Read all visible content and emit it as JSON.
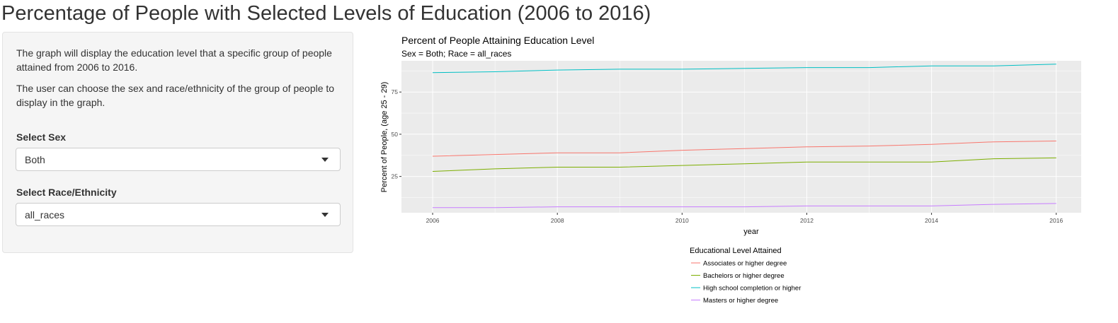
{
  "page": {
    "title": "Percentage of People with Selected Levels of Education (2006 to 2016)"
  },
  "sidebar": {
    "description_1": "The graph will display the education level that a specific group of people attained from 2006 to 2016.",
    "description_2": "The user can choose the sex and race/ethnicity of the group of people to display in the graph.",
    "sex_label": "Select Sex",
    "sex_value": "Both",
    "race_label": "Select Race/Ethnicity",
    "race_value": "all_races"
  },
  "chart_data": {
    "type": "line",
    "title": "Percent of People Attaining Education Level",
    "subtitle": "Sex = Both; Race = all_races",
    "xlabel": "year",
    "ylabel": "Percent of People, (age 25 - 29)",
    "x": [
      2006,
      2007,
      2008,
      2009,
      2010,
      2011,
      2012,
      2013,
      2014,
      2015,
      2016
    ],
    "xticks": [
      2006,
      2008,
      2010,
      2012,
      2014,
      2016
    ],
    "yticks": [
      25,
      50,
      75
    ],
    "xlim": [
      2005.5,
      2016.4
    ],
    "ylim": [
      3.5,
      93.5
    ],
    "grid": true,
    "legend_title": "Educational Level Attained",
    "legend_position": "bottom",
    "series": [
      {
        "name": "Associates or higher degree",
        "color": "#F8766D",
        "values": [
          37.0,
          38.0,
          39.0,
          39.0,
          40.5,
          41.5,
          42.5,
          43.0,
          44.0,
          45.5,
          46.0
        ]
      },
      {
        "name": "Bachelors or higher degree",
        "color": "#7CAE00",
        "values": [
          28.0,
          29.5,
          30.5,
          30.5,
          31.5,
          32.5,
          33.5,
          33.5,
          33.5,
          35.5,
          36.0
        ]
      },
      {
        "name": "High school completion or higher",
        "color": "#00BFC4",
        "values": [
          86.5,
          87.0,
          88.0,
          88.5,
          88.5,
          89.0,
          89.5,
          89.5,
          90.5,
          90.5,
          91.5
        ]
      },
      {
        "name": "Masters or higher degree",
        "color": "#C77CFF",
        "values": [
          6.5,
          6.5,
          7.0,
          7.0,
          7.0,
          7.0,
          7.5,
          7.5,
          7.5,
          8.5,
          9.0
        ]
      }
    ]
  }
}
